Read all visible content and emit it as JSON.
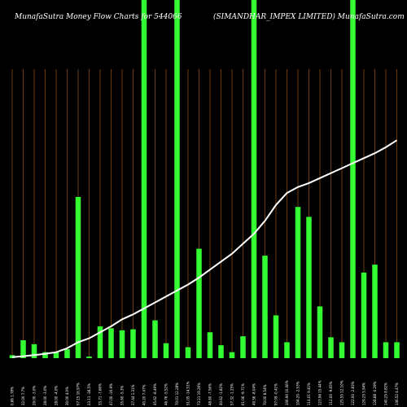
{
  "header": {
    "left_title": "MunafaSutra  Money Flow  Charts for 544066",
    "right_title": "(SIMANDHAR_IMPEX   LIMITED) MunafaSutra.com"
  },
  "chart_data": {
    "type": "bar",
    "background": "#000000",
    "bar_color": "#33ff33",
    "line_color": "#ffffff",
    "gridline_color": "#8a4a0f",
    "grid": "vertical",
    "categories": [
      "0.86 1.78%",
      "32.00 7.7%",
      "29.00 -3.0%",
      "28.00 -3.0%",
      "28.00 -4.0%",
      "30.00 4.0%",
      "57.15 16.97%",
      "23.11 -38.5%",
      "33.71 -7.66%",
      "47.00 -16.9%",
      "35.60 -5.3%",
      "37.44 1.31%",
      "40.20 7.47%",
      "45.62 -8.49%",
      "46.76 -5.52%",
      "70.01 12.28%",
      "51.05 -14.51%",
      "73.21 19.26%",
      "48.60 -7.56%",
      "40.62 -1.82%",
      "57.32 -1.25%",
      "61.06 -9.71%",
      "49.56 -8.04%",
      "70.00 8.54%",
      "97.09 -0.41%",
      "106.90 10.06%",
      "104.20 -2.53%",
      "114.01 9.41%",
      "123.96 15.44%",
      "112.00 -9.65%",
      "125.55 12.10%",
      "122.00 -2.83%",
      "129.25 5.94%",
      "128.88 -0.29%",
      "140.25 8.82%",
      "146.52 4.47%"
    ],
    "values": [
      1.5,
      9,
      7,
      3,
      3,
      4.5,
      81,
      0.8,
      16,
      15,
      14,
      14.5,
      180,
      19,
      7.5,
      180,
      5.5,
      55,
      13,
      6.5,
      3,
      11,
      180,
      51.5,
      21.5,
      8,
      76,
      71,
      26,
      10.5,
      8,
      180,
      43,
      47,
      8,
      8
    ],
    "line_values": [
      0.5,
      1,
      1.5,
      2.2,
      3,
      5,
      8,
      10,
      13,
      16,
      19.5,
      22,
      25,
      28,
      31,
      34,
      37,
      40.5,
      44.5,
      48.5,
      52.5,
      57.5,
      62.5,
      69,
      77,
      83,
      86,
      88,
      90.5,
      93,
      95.5,
      98,
      100.5,
      103,
      106,
      109.5
    ],
    "ylim": [
      0,
      180
    ]
  }
}
